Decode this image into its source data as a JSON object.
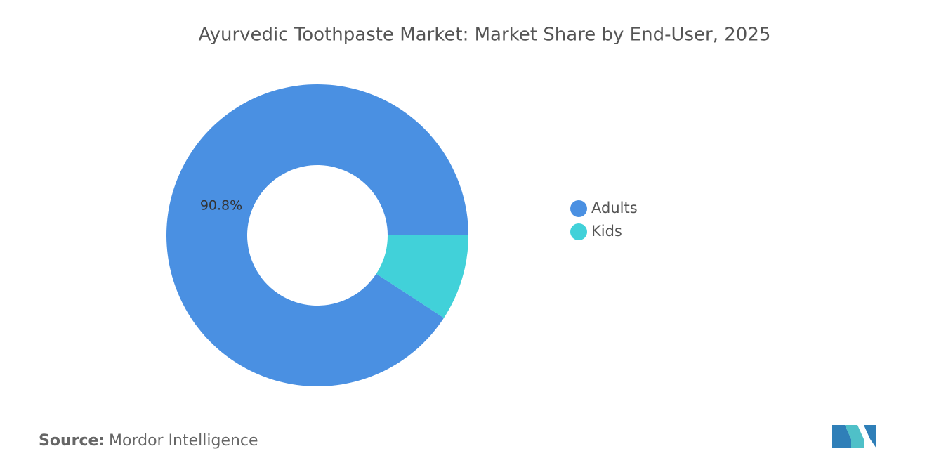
{
  "chart_data": {
    "type": "donut",
    "title": "Ayurvedic Toothpaste Market: Market Share by End-User, 2025",
    "categories": [
      "Adults",
      "Kids"
    ],
    "values": [
      90.8,
      9.2
    ],
    "value_labels": [
      "90.8%",
      null
    ],
    "colors": [
      "#4a90e2",
      "#41d1d9"
    ],
    "legend": "right"
  },
  "source": {
    "label": "Source:",
    "text": "Mordor Intelligence"
  }
}
